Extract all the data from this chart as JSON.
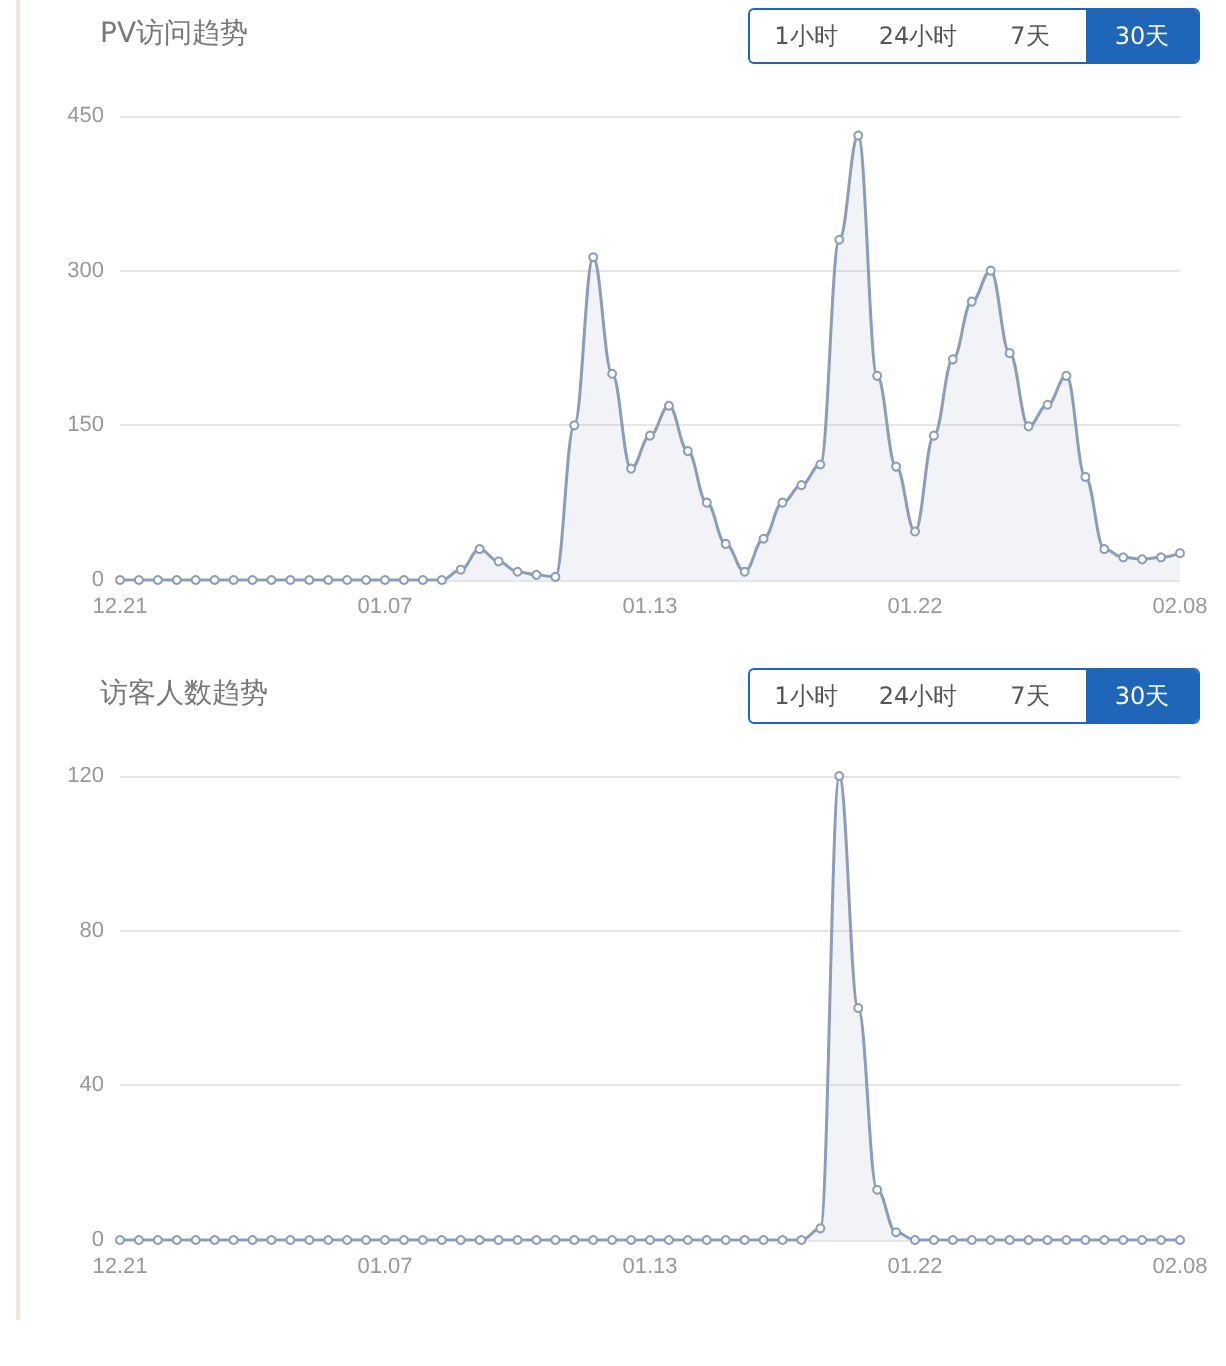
{
  "chart_data": [
    {
      "type": "area",
      "title": "PV访问趋势",
      "annotations": [
        "1小时",
        "24小时",
        "7天",
        "30天"
      ],
      "categories": [
        "12.21",
        null,
        null,
        null,
        null,
        null,
        null,
        null,
        null,
        null,
        null,
        null,
        null,
        null,
        "01.07",
        null,
        null,
        null,
        null,
        null,
        null,
        null,
        null,
        null,
        null,
        null,
        null,
        null,
        "01.13",
        null,
        null,
        null,
        null,
        null,
        null,
        null,
        null,
        null,
        null,
        null,
        null,
        null,
        "01.22",
        null,
        null,
        null,
        null,
        null,
        null,
        null,
        null,
        null,
        null,
        null,
        null,
        null,
        "02.08"
      ],
      "series": [
        {
          "color": "#8b9db8",
          "values": [
            0,
            0,
            0,
            0,
            0,
            0,
            0,
            0,
            0,
            0,
            0,
            0,
            0,
            0,
            0,
            0,
            0,
            0,
            10,
            30,
            18,
            8,
            5,
            3,
            150,
            313,
            200,
            108,
            140,
            169,
            125,
            75,
            35,
            8,
            40,
            75,
            92,
            112,
            330,
            431,
            198,
            110,
            47,
            140,
            214,
            270,
            300,
            220,
            149,
            170,
            198,
            100,
            30,
            22,
            20,
            22,
            26
          ]
        }
      ],
      "ylim": [
        0,
        450
      ],
      "yticks": [
        0,
        150,
        300,
        450
      ],
      "grid": "y",
      "marker": "circle"
    },
    {
      "type": "area",
      "title": "访客人数趋势",
      "annotations": [
        "1小时",
        "24小时",
        "7天",
        "30天"
      ],
      "categories": [
        "12.21",
        null,
        null,
        null,
        null,
        null,
        null,
        null,
        null,
        null,
        null,
        null,
        null,
        null,
        "01.07",
        null,
        null,
        null,
        null,
        null,
        null,
        null,
        null,
        null,
        null,
        null,
        null,
        null,
        "01.13",
        null,
        null,
        null,
        null,
        null,
        null,
        null,
        null,
        null,
        null,
        null,
        null,
        null,
        "01.22",
        null,
        null,
        null,
        null,
        null,
        null,
        null,
        null,
        null,
        null,
        null,
        null,
        null,
        "02.08"
      ],
      "series": [
        {
          "color": "#8b9db8",
          "values": [
            0,
            0,
            0,
            0,
            0,
            0,
            0,
            0,
            0,
            0,
            0,
            0,
            0,
            0,
            0,
            0,
            0,
            0,
            0,
            0,
            0,
            0,
            0,
            0,
            0,
            0,
            0,
            0,
            0,
            0,
            0,
            0,
            0,
            0,
            0,
            0,
            0,
            3,
            120,
            60,
            13,
            2,
            0,
            0,
            0,
            0,
            0,
            0,
            0,
            0,
            0,
            0,
            0,
            0,
            0,
            0,
            0
          ]
        }
      ],
      "ylim": [
        0,
        120
      ],
      "yticks": [
        0,
        40,
        80,
        120
      ],
      "grid": "y",
      "marker": "circle"
    }
  ]
}
